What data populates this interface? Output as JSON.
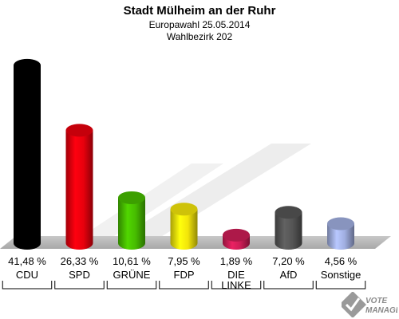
{
  "header": {
    "title": "Stadt Mülheim an der Ruhr",
    "subtitle1": "Europawahl 25.05.2014",
    "subtitle2": "Wahlbezirk 202"
  },
  "chart_data": {
    "type": "bar",
    "title": "Stadt Mülheim an der Ruhr",
    "subtitle": [
      "Europawahl 25.05.2014",
      "Wahlbezirk 202"
    ],
    "categories": [
      "CDU",
      "SPD",
      "GRÜNE",
      "FDP",
      "DIE LINKE",
      "AfD",
      "Sonstige"
    ],
    "category_lines": [
      [
        "CDU"
      ],
      [
        "SPD"
      ],
      [
        "GRÜNE"
      ],
      [
        "FDP"
      ],
      [
        "DIE",
        "LINKE"
      ],
      [
        "AfD"
      ],
      [
        "Sonstige"
      ]
    ],
    "values": [
      41.48,
      26.33,
      10.61,
      7.95,
      1.89,
      7.2,
      4.56
    ],
    "value_labels": [
      "41,48 %",
      "26,33 %",
      "10,61 %",
      "7,95 %",
      "1,89 %",
      "7,20 %",
      "4,56 %"
    ],
    "colors": [
      "#000000",
      "#e8000d",
      "#46bb00",
      "#f2e40a",
      "#cc1d56",
      "#555555",
      "#a0aee0"
    ],
    "ylim": [
      0,
      45
    ],
    "grid": false,
    "legend": "none"
  },
  "logo": {
    "line1": "VOTE",
    "line2": "MANAGER"
  }
}
